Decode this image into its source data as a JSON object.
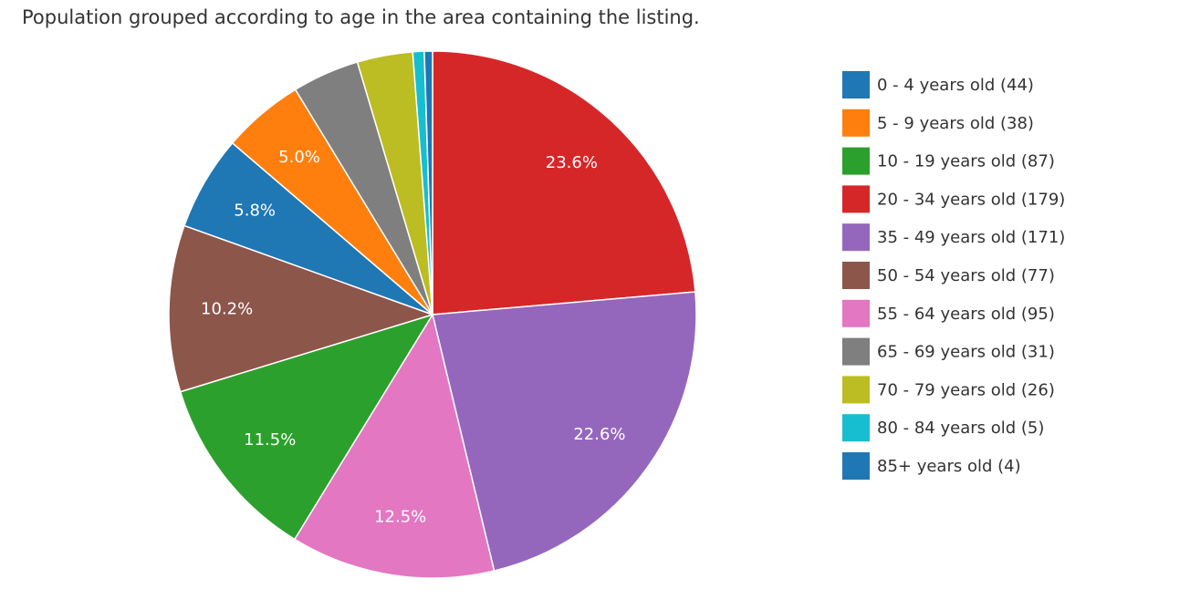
{
  "chart_data": {
    "type": "pie",
    "title": "Population grouped according to age in the area containing the listing.",
    "categories": [
      "0 - 4 years old (44)",
      "5 - 9 years old (38)",
      "10 - 19 years old (87)",
      "20 - 34 years old (179)",
      "35 - 49 years old (171)",
      "50 - 54 years old (77)",
      "55 - 64 years old (95)",
      "65 - 69 years old (31)",
      "70 - 79 years old (26)",
      "80 - 84 years old (5)",
      "85+ years old (4)"
    ],
    "values": [
      5.8,
      5.0,
      11.5,
      23.6,
      22.6,
      10.2,
      12.5,
      4.1,
      3.4,
      0.7,
      0.5
    ],
    "value_labels": [
      "5.8%",
      "5.0%",
      "11.5%",
      "23.6%",
      "22.6%",
      "10.2%",
      "12.5%",
      null,
      null,
      null,
      null
    ],
    "colors": [
      "#1f77b4",
      "#ff7f0e",
      "#2ca02c",
      "#d62728",
      "#9467bd",
      "#8c564b",
      "#e377c2",
      "#7f7f7f",
      "#bcbd22",
      "#17becf",
      "#1f77b4"
    ],
    "legend": "right"
  }
}
